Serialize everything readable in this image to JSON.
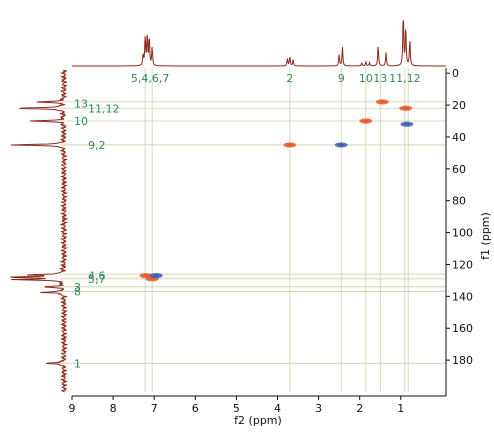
{
  "chart_data": {
    "type": "scatter",
    "xlabel": "f2 (ppm)",
    "ylabel": "f1 (ppm)",
    "xlim": [
      9.0,
      -0.1
    ],
    "ylim": [
      -2,
      200
    ],
    "x_ticks": [
      9,
      8,
      7,
      6,
      5,
      4,
      3,
      2,
      1
    ],
    "y_ticks": [
      0,
      20,
      40,
      60,
      80,
      100,
      120,
      140,
      160,
      180
    ],
    "colors": {
      "positive": "#e8582a",
      "negative": "#3a5fb0",
      "projection": "#8b2a1c",
      "label": "#2e8b57",
      "guide": "#c9cfa8"
    },
    "top_labels": [
      {
        "text": "5,4,6,7",
        "x": 7.1
      },
      {
        "text": "2",
        "x": 3.7
      },
      {
        "text": "9",
        "x": 2.45
      },
      {
        "text": "10",
        "x": 1.85
      },
      {
        "text": "13",
        "x": 1.5
      },
      {
        "text": "11,12",
        "x": 0.9
      }
    ],
    "left_labels": [
      {
        "text": "13",
        "y": 19
      },
      {
        "text": "11,12",
        "y": 22
      },
      {
        "text": "10",
        "y": 30
      },
      {
        "text": "9,2",
        "y": 45
      },
      {
        "text": "4,6",
        "y": 127
      },
      {
        "text": "5,7",
        "y": 129
      },
      {
        "text": "3",
        "y": 134
      },
      {
        "text": "8",
        "y": 137
      },
      {
        "text": "1",
        "y": 182
      }
    ],
    "v_guides": [
      7.22,
      7.05,
      3.7,
      2.45,
      1.85,
      1.5,
      0.9,
      0.82
    ],
    "h_guides": [
      18,
      22,
      30,
      45,
      126,
      129,
      134,
      137,
      182
    ],
    "cross_peaks": [
      {
        "x": 7.2,
        "y": 127,
        "phase": "positive",
        "label": "4,6"
      },
      {
        "x": 7.05,
        "y": 129,
        "phase": "positive",
        "label": "5,7"
      },
      {
        "x": 6.95,
        "y": 127,
        "phase": "negative"
      },
      {
        "x": 3.7,
        "y": 45,
        "phase": "positive",
        "label": "2"
      },
      {
        "x": 2.45,
        "y": 45,
        "phase": "negative",
        "label": "9"
      },
      {
        "x": 1.85,
        "y": 30,
        "phase": "positive",
        "label": "10"
      },
      {
        "x": 1.45,
        "y": 18,
        "phase": "positive",
        "label": "13"
      },
      {
        "x": 0.88,
        "y": 22,
        "phase": "positive",
        "label": "11,12"
      },
      {
        "x": 0.85,
        "y": 32,
        "phase": "negative"
      }
    ],
    "f2_projection_peaks": [
      {
        "x": 7.27,
        "h": 0.2
      },
      {
        "x": 7.22,
        "h": 0.55
      },
      {
        "x": 7.17,
        "h": 0.6
      },
      {
        "x": 7.12,
        "h": 0.55
      },
      {
        "x": 7.05,
        "h": 0.35
      },
      {
        "x": 3.76,
        "h": 0.14
      },
      {
        "x": 3.7,
        "h": 0.18
      },
      {
        "x": 3.62,
        "h": 0.12
      },
      {
        "x": 2.5,
        "h": 0.22
      },
      {
        "x": 2.42,
        "h": 0.35
      },
      {
        "x": 1.95,
        "h": 0.06
      },
      {
        "x": 1.85,
        "h": 0.08
      },
      {
        "x": 1.76,
        "h": 0.06
      },
      {
        "x": 1.55,
        "h": 0.4
      },
      {
        "x": 1.36,
        "h": 0.25
      },
      {
        "x": 0.94,
        "h": 1.0
      },
      {
        "x": 0.88,
        "h": 0.75
      },
      {
        "x": 0.78,
        "h": 0.5
      }
    ],
    "f1_projection_peaks": [
      {
        "y": 18,
        "h": 0.45
      },
      {
        "y": 22,
        "h": 0.9
      },
      {
        "y": 30,
        "h": 0.55
      },
      {
        "y": 45,
        "h": 0.95
      },
      {
        "y": 126.5,
        "h": 0.6
      },
      {
        "y": 128,
        "h": 0.95
      },
      {
        "y": 129.5,
        "h": 0.8
      },
      {
        "y": 134,
        "h": 0.35
      },
      {
        "y": 137.5,
        "h": 0.4
      },
      {
        "y": 182,
        "h": 0.35
      }
    ]
  }
}
